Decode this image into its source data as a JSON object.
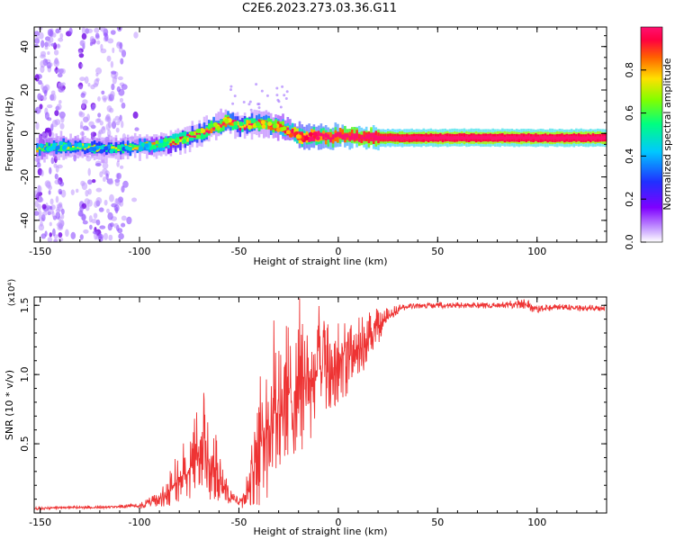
{
  "figure_title": "C2E6.2023.273.03.36.G11",
  "chart_data": [
    {
      "type": "heatmap",
      "title": "C2E6.2023.273.03.36.G11",
      "xlabel": "Height of straight line (km)",
      "ylabel": "Frequency (Hz)",
      "xlim": [
        -153,
        135
      ],
      "ylim": [
        -50,
        49
      ],
      "x_ticks": [
        "-150",
        "-100",
        "-50",
        "0",
        "50",
        "100"
      ],
      "y_ticks": [
        "-40",
        "-20",
        "0",
        "20",
        "40"
      ],
      "colorbar": {
        "label": "Normalized spectral amplitude",
        "range": [
          0,
          1
        ],
        "ticks": [
          "0.0",
          "0.2",
          "0.4",
          "0.6",
          "0.8"
        ],
        "colormap": "rainbow"
      },
      "ridge": {
        "x": [
          -150,
          -140,
          -130,
          -120,
          -110,
          -100,
          -90,
          -80,
          -70,
          -60,
          -55,
          -50,
          -45,
          -40,
          -35,
          -30,
          -25,
          -20,
          -15,
          -10,
          -5,
          0,
          10,
          50,
          100,
          134
        ],
        "y": [
          -7,
          -6,
          -6,
          -7,
          -7,
          -6,
          -5,
          -3,
          0,
          4,
          6,
          3,
          4,
          5,
          4,
          3,
          1,
          -1,
          -2,
          -1,
          -2,
          -1,
          -2,
          -2,
          -2,
          -2
        ],
        "amplitude": [
          0.35,
          0.33,
          0.3,
          0.28,
          0.3,
          0.35,
          0.4,
          0.5,
          0.55,
          0.6,
          0.6,
          0.5,
          0.55,
          0.6,
          0.6,
          0.65,
          0.7,
          0.75,
          0.8,
          0.8,
          0.85,
          0.85,
          0.9,
          0.95,
          0.95,
          0.95
        ]
      },
      "grid": false
    },
    {
      "type": "line",
      "xlabel": "Height of straight line (km)",
      "ylabel": "SNR (10 * v/v)",
      "y_multiplier": "(x10⁴)",
      "xlim": [
        -153,
        135
      ],
      "ylim": [
        0,
        1.56
      ],
      "x_ticks": [
        "-150",
        "-100",
        "-50",
        "0",
        "50",
        "100"
      ],
      "y_ticks": [
        "0.5",
        "1.0",
        "1.5"
      ],
      "series": [
        {
          "color": "#ee3333",
          "x": [
            -153,
            -140,
            -130,
            -120,
            -110,
            -100,
            -95,
            -90,
            -85,
            -80,
            -75,
            -70,
            -67,
            -65,
            -62,
            -58,
            -55,
            -50,
            -45,
            -42,
            -40,
            -38,
            -35,
            -30,
            -25,
            -20,
            -15,
            -10,
            -5,
            0,
            5,
            10,
            15,
            20,
            25,
            30,
            35,
            40,
            50,
            60,
            70,
            80,
            90,
            95,
            100,
            110,
            120,
            134
          ],
          "y": [
            0.03,
            0.04,
            0.04,
            0.04,
            0.05,
            0.05,
            0.08,
            0.1,
            0.15,
            0.25,
            0.3,
            0.4,
            0.55,
            0.35,
            0.3,
            0.2,
            0.12,
            0.08,
            0.18,
            0.35,
            0.45,
            0.55,
            0.65,
            0.75,
            0.85,
            0.9,
            0.95,
            1.0,
            1.05,
            1.05,
            1.12,
            1.18,
            1.25,
            1.35,
            1.42,
            1.47,
            1.49,
            1.5,
            1.5,
            1.5,
            1.5,
            1.5,
            1.51,
            1.5,
            1.47,
            1.49,
            1.48,
            1.48
          ],
          "noise_envelope": [
            0.01,
            0.01,
            0.01,
            0.01,
            0.01,
            0.02,
            0.03,
            0.05,
            0.1,
            0.15,
            0.2,
            0.25,
            0.28,
            0.25,
            0.2,
            0.12,
            0.06,
            0.05,
            0.15,
            0.3,
            0.4,
            0.45,
            0.5,
            0.5,
            0.5,
            0.45,
            0.4,
            0.35,
            0.3,
            0.25,
            0.25,
            0.2,
            0.18,
            0.12,
            0.06,
            0.03,
            0.02,
            0.02,
            0.02,
            0.02,
            0.02,
            0.02,
            0.03,
            0.04,
            0.03,
            0.02,
            0.02,
            0.02
          ]
        }
      ],
      "grid": false
    }
  ]
}
